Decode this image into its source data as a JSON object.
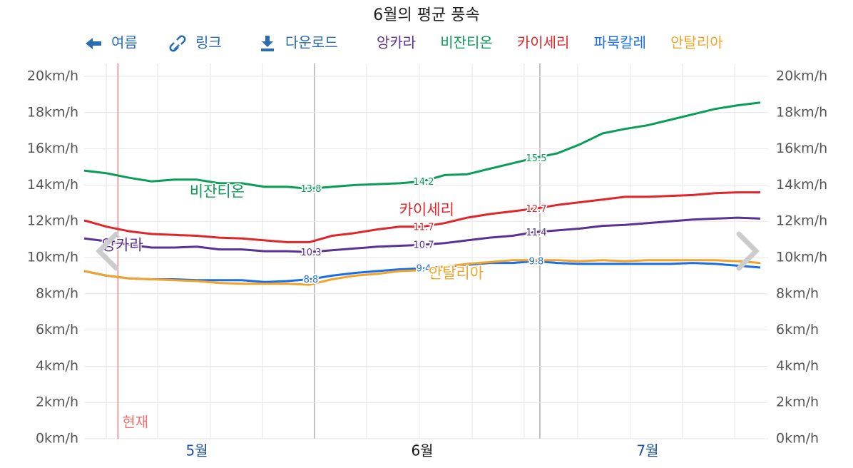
{
  "chart_data": {
    "type": "line",
    "title": "6월의 평균 풍속",
    "toolbar": [
      "여름",
      "링크",
      "다운로드"
    ],
    "categories": [
      null,
      null,
      null,
      null,
      null,
      "5월",
      null,
      null,
      null,
      null,
      null,
      null,
      null,
      null,
      null,
      "6월",
      null,
      null,
      null,
      null,
      null,
      null,
      null,
      null,
      null,
      "7월",
      null,
      null,
      null,
      null,
      null
    ],
    "ylim": [
      0,
      20
    ],
    "yticks": [
      {
        "value": 0,
        "label": "0km/h"
      },
      {
        "value": 2,
        "label": "2km/h"
      },
      {
        "value": 4,
        "label": "4km/h"
      },
      {
        "value": 6,
        "label": "6km/h"
      },
      {
        "value": 8,
        "label": "8km/h"
      },
      {
        "value": 10,
        "label": "10km/h"
      },
      {
        "value": 12,
        "label": "12km/h"
      },
      {
        "value": 14,
        "label": "14km/h"
      },
      {
        "value": 16,
        "label": "16km/h"
      },
      {
        "value": 18,
        "label": "18km/h"
      },
      {
        "value": 20,
        "label": "20km/h"
      }
    ],
    "grid": true,
    "current": {
      "label": "현재",
      "index": 1.5
    },
    "series": [
      {
        "name": "앙카라",
        "color": "#5b3195",
        "values": [
          11.05,
          10.9,
          10.7,
          10.55,
          10.55,
          10.6,
          10.45,
          10.45,
          10.35,
          10.35,
          10.3,
          10.4,
          10.5,
          10.6,
          10.65,
          10.7,
          10.8,
          10.95,
          11.1,
          11.2,
          11.4,
          11.5,
          11.6,
          11.75,
          11.8,
          11.9,
          12.0,
          12.1,
          12.15,
          12.2,
          12.15
        ],
        "value_labels": [
          null,
          null,
          null,
          null,
          null,
          null,
          null,
          null,
          null,
          null,
          "10.3",
          null,
          null,
          null,
          null,
          "10.7",
          null,
          null,
          null,
          null,
          "11.4",
          null,
          null,
          null,
          null,
          null,
          null,
          null,
          null,
          null,
          null
        ]
      },
      {
        "name": "비잔티온",
        "color": "#0a9d58",
        "values": [
          14.8,
          14.65,
          14.4,
          14.2,
          14.3,
          14.3,
          14.1,
          14.1,
          13.9,
          13.9,
          13.8,
          13.9,
          14.0,
          14.05,
          14.1,
          14.2,
          14.55,
          14.6,
          14.9,
          15.2,
          15.5,
          15.75,
          16.25,
          16.85,
          17.1,
          17.3,
          17.6,
          17.9,
          18.2,
          18.4,
          18.55
        ],
        "value_labels": [
          null,
          null,
          null,
          null,
          null,
          null,
          null,
          null,
          null,
          null,
          "13.8",
          null,
          null,
          null,
          null,
          "14.2",
          null,
          null,
          null,
          null,
          "15.5",
          null,
          null,
          null,
          null,
          null,
          null,
          null,
          null,
          null,
          null
        ]
      },
      {
        "name": "카이세리",
        "color": "#e0262b",
        "values": [
          12.05,
          11.7,
          11.45,
          11.3,
          11.25,
          11.2,
          11.1,
          11.05,
          10.95,
          10.85,
          10.85,
          11.2,
          11.35,
          11.55,
          11.7,
          11.7,
          11.9,
          12.2,
          12.4,
          12.55,
          12.7,
          12.9,
          13.05,
          13.2,
          13.35,
          13.35,
          13.4,
          13.45,
          13.55,
          13.6,
          13.6
        ],
        "value_labels": [
          null,
          null,
          null,
          null,
          null,
          null,
          null,
          null,
          null,
          null,
          null,
          null,
          null,
          null,
          null,
          "11.7",
          null,
          null,
          null,
          null,
          "12.7",
          null,
          null,
          null,
          null,
          null,
          null,
          null,
          null,
          null,
          null
        ]
      },
      {
        "name": "파묵칼레",
        "color": "#1a6ee8",
        "values": [
          9.25,
          9.0,
          8.85,
          8.8,
          8.8,
          8.75,
          8.75,
          8.75,
          8.65,
          8.7,
          8.8,
          9.0,
          9.15,
          9.25,
          9.35,
          9.4,
          9.5,
          9.6,
          9.7,
          9.7,
          9.8,
          9.7,
          9.65,
          9.65,
          9.65,
          9.65,
          9.65,
          9.7,
          9.65,
          9.55,
          9.45
        ],
        "value_labels": [
          null,
          null,
          null,
          null,
          null,
          null,
          null,
          null,
          null,
          null,
          "8.8",
          null,
          null,
          null,
          null,
          "9.4",
          null,
          null,
          null,
          null,
          "9.8",
          null,
          null,
          null,
          null,
          null,
          null,
          null,
          null,
          null,
          null
        ]
      },
      {
        "name": "안탈리아",
        "color": "#f2a42a",
        "values": [
          9.25,
          9.0,
          8.85,
          8.8,
          8.75,
          8.7,
          8.6,
          8.55,
          8.55,
          8.55,
          8.5,
          8.8,
          9.0,
          9.1,
          9.25,
          9.3,
          9.5,
          9.65,
          9.75,
          9.85,
          9.85,
          9.85,
          9.8,
          9.85,
          9.8,
          9.85,
          9.85,
          9.85,
          9.85,
          9.8,
          9.7
        ]
      }
    ],
    "series_labels": [
      {
        "series": 0,
        "index": 1.7,
        "value": 10.65
      },
      {
        "series": 1,
        "index": 5.9,
        "value": 13.6
      },
      {
        "series": 2,
        "index": 15.2,
        "value": 12.6
      },
      {
        "series": 4,
        "index": 16.5,
        "value": 9.1
      }
    ]
  }
}
